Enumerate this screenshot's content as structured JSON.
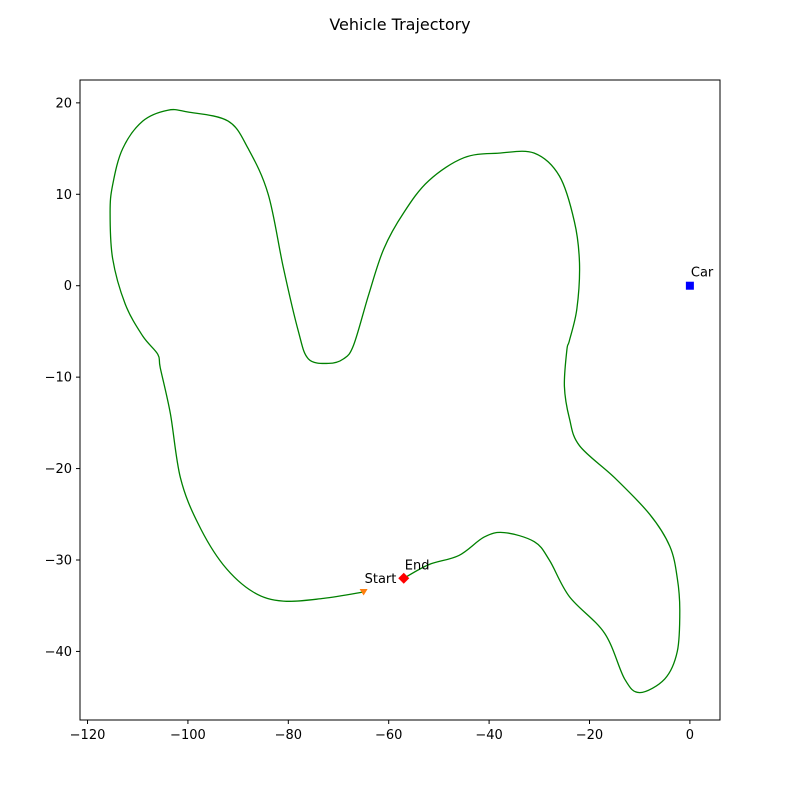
{
  "chart_data": {
    "type": "line",
    "title": "Vehicle Trajectory",
    "xlabel": "",
    "ylabel": "",
    "xlim": [
      -121.5,
      6
    ],
    "ylim": [
      -47.5,
      22.5
    ],
    "xticks": [
      -120,
      -100,
      -80,
      -60,
      -40,
      -20,
      0
    ],
    "yticks": [
      20,
      10,
      0,
      -10,
      -20,
      -30,
      -40
    ],
    "xtick_labels": [
      "−120",
      "−100",
      "−80",
      "−60",
      "−40",
      "−20",
      "0"
    ],
    "ytick_labels": [
      "20",
      "10",
      "0",
      "−10",
      "−20",
      "−30",
      "−40"
    ],
    "grid": false,
    "series": [
      {
        "type": "line",
        "color": "#008000",
        "points": [
          [
            -65,
            -33.5
          ],
          [
            -73,
            -34.2
          ],
          [
            -81,
            -34.5
          ],
          [
            -87,
            -33.5
          ],
          [
            -93,
            -30.5
          ],
          [
            -98,
            -26
          ],
          [
            -101.5,
            -21
          ],
          [
            -103.5,
            -14
          ],
          [
            -105.5,
            -9
          ],
          [
            -106,
            -7.5
          ],
          [
            -109,
            -5.5
          ],
          [
            -112.5,
            -2
          ],
          [
            -115,
            3
          ],
          [
            -115.5,
            8
          ],
          [
            -115,
            11
          ],
          [
            -113,
            15
          ],
          [
            -109,
            18
          ],
          [
            -104,
            19.2
          ],
          [
            -100,
            19
          ],
          [
            -92,
            18
          ],
          [
            -88,
            15
          ],
          [
            -84,
            10
          ],
          [
            -81,
            2
          ],
          [
            -78,
            -5
          ],
          [
            -76,
            -8
          ],
          [
            -72,
            -8.5
          ],
          [
            -69,
            -8
          ],
          [
            -67,
            -6.5
          ],
          [
            -64,
            -1
          ],
          [
            -61,
            4
          ],
          [
            -57,
            8
          ],
          [
            -52,
            11.5
          ],
          [
            -45,
            14
          ],
          [
            -38,
            14.5
          ],
          [
            -31,
            14.5
          ],
          [
            -26,
            12
          ],
          [
            -23,
            7
          ],
          [
            -22,
            2.5
          ],
          [
            -22.5,
            -2.5
          ],
          [
            -24,
            -6
          ],
          [
            -24.5,
            -7
          ],
          [
            -25,
            -11
          ],
          [
            -24,
            -14.5
          ],
          [
            -22,
            -17.5
          ],
          [
            -15,
            -21
          ],
          [
            -8,
            -25
          ],
          [
            -4,
            -28.5
          ],
          [
            -2.5,
            -32
          ],
          [
            -2,
            -35.5
          ],
          [
            -2.5,
            -40
          ],
          [
            -5,
            -43
          ],
          [
            -10,
            -44.5
          ],
          [
            -13,
            -43
          ],
          [
            -17,
            -38
          ],
          [
            -24,
            -34
          ],
          [
            -28,
            -30
          ],
          [
            -31,
            -28
          ],
          [
            -37,
            -27
          ],
          [
            -41,
            -27.5
          ],
          [
            -46,
            -29.5
          ],
          [
            -52,
            -30.5
          ],
          [
            -57,
            -32
          ]
        ]
      }
    ],
    "markers": [
      {
        "name": "Start",
        "x": -65,
        "y": -33.5,
        "shape": "triangle-down",
        "color": "#ff7f0e",
        "label": "Start"
      },
      {
        "name": "End",
        "x": -57,
        "y": -32,
        "shape": "diamond",
        "color": "#ff0000",
        "label": "End"
      },
      {
        "name": "Car",
        "x": 0,
        "y": 0,
        "shape": "square",
        "color": "#0000ff",
        "label": "Car"
      }
    ]
  }
}
